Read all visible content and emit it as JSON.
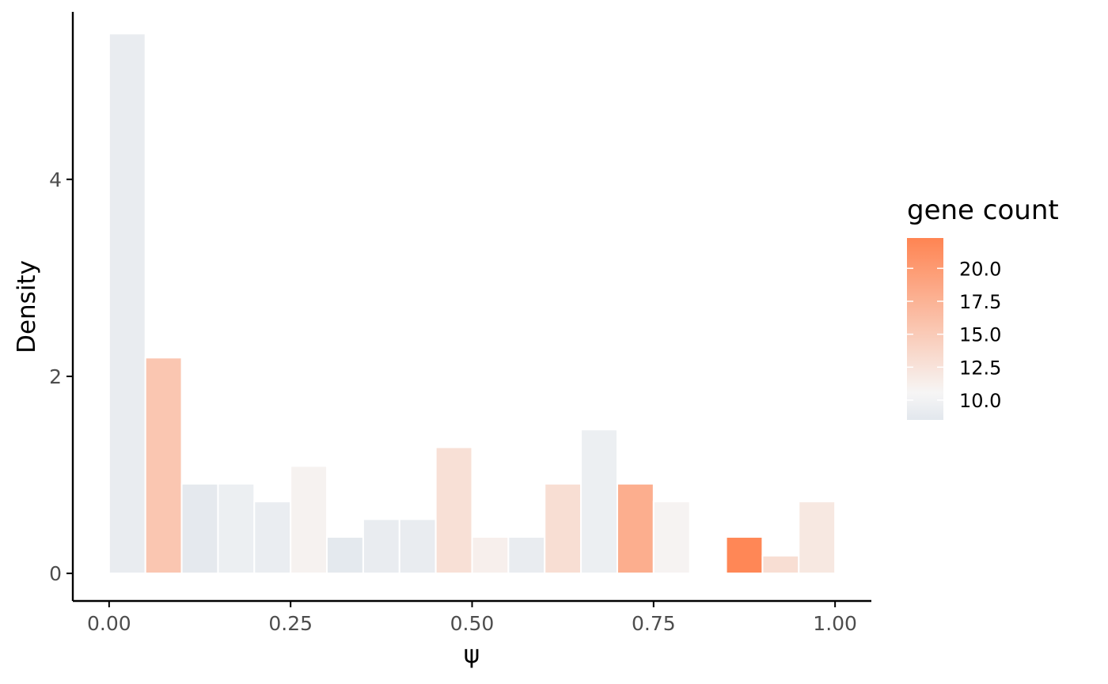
{
  "chart_data": {
    "type": "bar",
    "subtype": "histogram",
    "xlabel": "ψ",
    "ylabel": "Density",
    "xlim": [
      -0.05,
      1.05
    ],
    "ylim": [
      -0.28,
      5.7
    ],
    "x_ticks": [
      0,
      0.25,
      0.5,
      0.75,
      1
    ],
    "x_tick_labels": [
      "0.00",
      "0.25",
      "0.50",
      "0.75",
      "1.00"
    ],
    "y_ticks": [
      0,
      2,
      4
    ],
    "y_tick_labels": [
      "0",
      "2",
      "4"
    ],
    "bin_width": 0.05,
    "bins": [
      {
        "start": 0.0,
        "end": 0.05,
        "density": 5.48,
        "gene_count": 9.2
      },
      {
        "start": 0.05,
        "end": 0.1,
        "density": 2.19,
        "gene_count": 15.5
      },
      {
        "start": 0.1,
        "end": 0.15,
        "density": 0.91,
        "gene_count": 8.8
      },
      {
        "start": 0.15,
        "end": 0.2,
        "density": 0.91,
        "gene_count": 9.5
      },
      {
        "start": 0.2,
        "end": 0.25,
        "density": 0.73,
        "gene_count": 9.3
      },
      {
        "start": 0.25,
        "end": 0.3,
        "density": 1.09,
        "gene_count": 10.9
      },
      {
        "start": 0.3,
        "end": 0.35,
        "density": 0.37,
        "gene_count": 8.7
      },
      {
        "start": 0.35,
        "end": 0.4,
        "density": 0.55,
        "gene_count": 9.2
      },
      {
        "start": 0.4,
        "end": 0.45,
        "density": 0.55,
        "gene_count": 9.2
      },
      {
        "start": 0.45,
        "end": 0.5,
        "density": 1.28,
        "gene_count": 12.8
      },
      {
        "start": 0.5,
        "end": 0.55,
        "density": 0.37,
        "gene_count": 11.2
      },
      {
        "start": 0.55,
        "end": 0.6,
        "density": 0.37,
        "gene_count": 9.2
      },
      {
        "start": 0.6,
        "end": 0.65,
        "density": 0.91,
        "gene_count": 13.0
      },
      {
        "start": 0.65,
        "end": 0.7,
        "density": 1.46,
        "gene_count": 9.5
      },
      {
        "start": 0.7,
        "end": 0.75,
        "density": 0.91,
        "gene_count": 18.0
      },
      {
        "start": 0.75,
        "end": 0.8,
        "density": 0.73,
        "gene_count": 10.8
      },
      {
        "start": 0.8,
        "end": 0.85,
        "density": 0.0,
        "gene_count": null
      },
      {
        "start": 0.85,
        "end": 0.9,
        "density": 0.37,
        "gene_count": 22.0
      },
      {
        "start": 0.9,
        "end": 0.95,
        "density": 0.18,
        "gene_count": 13.0
      },
      {
        "start": 0.95,
        "end": 1.0,
        "density": 0.73,
        "gene_count": 12.0
      }
    ],
    "legend": {
      "title": "gene count",
      "position": "right",
      "range": [
        8.5,
        22.3
      ],
      "breaks": [
        10,
        12.5,
        15,
        17.5,
        20
      ],
      "break_labels": [
        "10.0",
        "12.5",
        "15.0",
        "17.5",
        "20.0"
      ]
    },
    "colors": {
      "low": "#e2e7ed",
      "mid": "#f6f6f6",
      "high": "#ff8452",
      "bar_outline": "#ffffff",
      "axis": "#000000",
      "tick_text": "#4d4d4d"
    },
    "grid": false
  }
}
